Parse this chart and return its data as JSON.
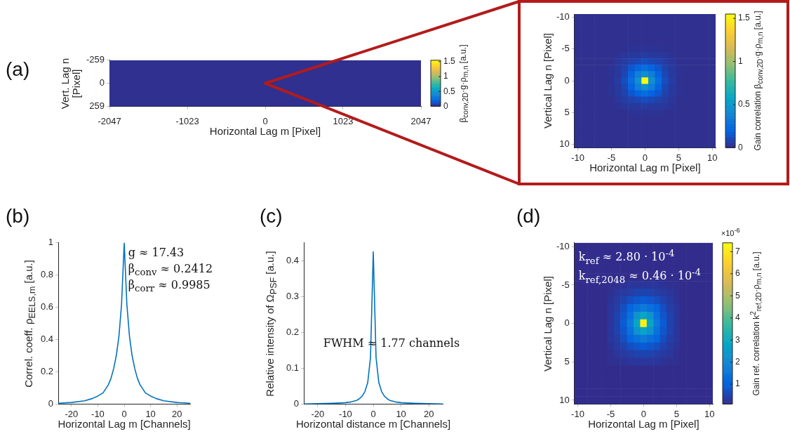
{
  "chart_data": [
    {
      "type": "heatmap",
      "title": "(a)",
      "xlabel": "Horizontal Lag m [Pixel]",
      "ylabel": "Vert. Lag n [Pixel]",
      "clabel": "β$_{conv,2D}$·g·ρ$_{m,n}$ [a.u.]",
      "xlim": [
        -2047,
        2047
      ],
      "xticks": [
        -2047,
        -1023,
        0,
        1023,
        2047
      ],
      "ylim": [
        259,
        -259
      ],
      "yticks": [
        -259,
        0,
        259
      ],
      "cells": [
        [
          0.02
        ]
      ],
      "clim": [
        0,
        1.55
      ],
      "cticks": [
        0,
        0.5,
        1,
        1.5
      ]
    },
    {
      "type": "heatmap",
      "xlabel": "Horizontal Lag m [Pixel]",
      "ylabel": "Vertical Lag n [Pixel]",
      "clabel": "Gain correlation β$_{conv,2D}$·g·ρ$_{m,n}$ [a.u.]",
      "xlim": [
        -10.5,
        10.5
      ],
      "xticks": [
        -10,
        -5,
        0,
        5,
        10
      ],
      "ylim": [
        10.5,
        -10.5
      ],
      "yticks": [
        -10,
        -5,
        0,
        5,
        10
      ],
      "clim": [
        0,
        1.55
      ],
      "cticks": [
        0,
        0.5,
        1,
        1.5
      ],
      "cells": [
        [
          0.02,
          0.02,
          0.02,
          0.02,
          0.02,
          0.02,
          0.02,
          0.02,
          0.02,
          0.02,
          0.02,
          0.02,
          0.02,
          0.02,
          0.02,
          0.02,
          0.02,
          0.02,
          0.02,
          0.02,
          0.02
        ],
        [
          0.02,
          0.02,
          0.02,
          0.02,
          0.02,
          0.02,
          0.02,
          0.02,
          0.02,
          0.02,
          0.02,
          0.02,
          0.02,
          0.02,
          0.02,
          0.02,
          0.02,
          0.02,
          0.02,
          0.02,
          0.02
        ],
        [
          0.02,
          0.02,
          0.02,
          0.02,
          0.02,
          0.02,
          0.02,
          0.02,
          0.02,
          0.02,
          0.02,
          0.02,
          0.02,
          0.02,
          0.02,
          0.02,
          0.02,
          0.02,
          0.02,
          0.02,
          0.02
        ],
        [
          0.02,
          0.02,
          0.02,
          0.02,
          0.02,
          0.02,
          0.02,
          0.02,
          0.02,
          0.02,
          0.02,
          0.02,
          0.02,
          0.02,
          0.02,
          0.02,
          0.02,
          0.02,
          0.02,
          0.02,
          0.02
        ],
        [
          0.02,
          0.02,
          0.02,
          0.02,
          0.02,
          0.02,
          0.02,
          0.02,
          0.02,
          0.02,
          0.02,
          0.02,
          0.02,
          0.02,
          0.02,
          0.02,
          0.02,
          0.02,
          0.02,
          0.02,
          0.02
        ],
        [
          0.02,
          0.02,
          0.02,
          0.02,
          0.02,
          0.02,
          0.02,
          0.02,
          0.03,
          0.03,
          0.03,
          0.03,
          0.03,
          0.02,
          0.02,
          0.02,
          0.02,
          0.02,
          0.02,
          0.02,
          0.02
        ],
        [
          0.02,
          0.02,
          0.02,
          0.02,
          0.02,
          0.02,
          0.03,
          0.04,
          0.05,
          0.05,
          0.06,
          0.05,
          0.05,
          0.04,
          0.03,
          0.02,
          0.02,
          0.02,
          0.02,
          0.02,
          0.02
        ],
        [
          0.02,
          0.02,
          0.02,
          0.02,
          0.02,
          0.02,
          0.04,
          0.06,
          0.08,
          0.1,
          0.12,
          0.1,
          0.08,
          0.06,
          0.04,
          0.02,
          0.02,
          0.02,
          0.02,
          0.02,
          0.02
        ],
        [
          0.02,
          0.02,
          0.02,
          0.02,
          0.02,
          0.03,
          0.05,
          0.08,
          0.15,
          0.2,
          0.25,
          0.2,
          0.15,
          0.08,
          0.05,
          0.03,
          0.02,
          0.02,
          0.02,
          0.02,
          0.02
        ],
        [
          0.02,
          0.02,
          0.02,
          0.02,
          0.02,
          0.03,
          0.05,
          0.1,
          0.2,
          0.35,
          0.45,
          0.35,
          0.2,
          0.1,
          0.05,
          0.03,
          0.02,
          0.02,
          0.02,
          0.02,
          0.02
        ],
        [
          0.02,
          0.02,
          0.02,
          0.02,
          0.02,
          0.03,
          0.06,
          0.12,
          0.25,
          0.45,
          1.55,
          0.45,
          0.25,
          0.12,
          0.06,
          0.03,
          0.02,
          0.02,
          0.02,
          0.02,
          0.02
        ],
        [
          0.02,
          0.02,
          0.02,
          0.02,
          0.02,
          0.03,
          0.05,
          0.1,
          0.2,
          0.35,
          0.45,
          0.35,
          0.2,
          0.1,
          0.05,
          0.03,
          0.02,
          0.02,
          0.02,
          0.02,
          0.02
        ],
        [
          0.02,
          0.02,
          0.02,
          0.02,
          0.02,
          0.03,
          0.05,
          0.08,
          0.15,
          0.2,
          0.25,
          0.2,
          0.15,
          0.08,
          0.05,
          0.03,
          0.02,
          0.02,
          0.02,
          0.02,
          0.02
        ],
        [
          0.02,
          0.02,
          0.02,
          0.02,
          0.02,
          0.02,
          0.04,
          0.06,
          0.08,
          0.1,
          0.12,
          0.1,
          0.08,
          0.06,
          0.04,
          0.02,
          0.02,
          0.02,
          0.02,
          0.02,
          0.02
        ],
        [
          0.02,
          0.02,
          0.02,
          0.02,
          0.02,
          0.02,
          0.03,
          0.04,
          0.05,
          0.05,
          0.06,
          0.05,
          0.05,
          0.04,
          0.03,
          0.02,
          0.02,
          0.02,
          0.02,
          0.02,
          0.02
        ],
        [
          0.02,
          0.02,
          0.02,
          0.02,
          0.02,
          0.02,
          0.02,
          0.02,
          0.03,
          0.03,
          0.03,
          0.03,
          0.03,
          0.02,
          0.02,
          0.02,
          0.02,
          0.02,
          0.02,
          0.02,
          0.02
        ],
        [
          0.02,
          0.02,
          0.02,
          0.02,
          0.02,
          0.02,
          0.02,
          0.02,
          0.02,
          0.02,
          0.02,
          0.02,
          0.02,
          0.02,
          0.02,
          0.02,
          0.02,
          0.02,
          0.02,
          0.02,
          0.02
        ],
        [
          0.02,
          0.02,
          0.02,
          0.02,
          0.02,
          0.02,
          0.02,
          0.02,
          0.02,
          0.02,
          0.02,
          0.02,
          0.02,
          0.02,
          0.02,
          0.02,
          0.02,
          0.02,
          0.02,
          0.02,
          0.02
        ],
        [
          0.02,
          0.02,
          0.02,
          0.02,
          0.02,
          0.02,
          0.02,
          0.02,
          0.02,
          0.02,
          0.02,
          0.02,
          0.02,
          0.02,
          0.02,
          0.02,
          0.02,
          0.02,
          0.02,
          0.02,
          0.02
        ],
        [
          0.02,
          0.02,
          0.02,
          0.02,
          0.02,
          0.02,
          0.02,
          0.02,
          0.02,
          0.02,
          0.02,
          0.02,
          0.02,
          0.02,
          0.02,
          0.02,
          0.02,
          0.02,
          0.02,
          0.02,
          0.02
        ],
        [
          0.02,
          0.02,
          0.02,
          0.02,
          0.02,
          0.02,
          0.02,
          0.02,
          0.02,
          0.02,
          0.02,
          0.02,
          0.02,
          0.02,
          0.02,
          0.02,
          0.02,
          0.02,
          0.02,
          0.02,
          0.02
        ]
      ]
    },
    {
      "type": "line",
      "title": "(b)",
      "xlabel": "Horizontal Lag m [Channels]",
      "ylabel": "Correl. coeff. ρ$_{EELS,m}$ [a.u.]",
      "annotations": [
        "g ≈ 17.43",
        "β$_{conv}$ ≈ 0.2412",
        "β$_{corr}$ ≈ 0.9985"
      ],
      "xlim": [
        -25,
        25
      ],
      "xticks": [
        -20,
        -10,
        0,
        10,
        20
      ],
      "ylim": [
        0,
        1
      ],
      "yticks": [
        0,
        0.2,
        0.4,
        0.6,
        0.8,
        1
      ],
      "x": [
        -25,
        -20,
        -15,
        -12,
        -10,
        -8,
        -6,
        -5,
        -4,
        -3,
        -2,
        -1,
        0,
        1,
        2,
        3,
        4,
        5,
        6,
        8,
        10,
        12,
        15,
        20,
        25
      ],
      "series": [
        {
          "color": "#0072bd",
          "values": [
            0.005,
            0.01,
            0.02,
            0.035,
            0.05,
            0.07,
            0.12,
            0.16,
            0.22,
            0.3,
            0.42,
            0.62,
            1,
            0.62,
            0.42,
            0.3,
            0.22,
            0.16,
            0.12,
            0.07,
            0.05,
            0.035,
            0.02,
            0.01,
            0.005
          ]
        }
      ]
    },
    {
      "type": "line",
      "title": "(c)",
      "xlabel": "Horizontal distance m [Channels]",
      "ylabel": "Relative intensity of Ω$_{PSF}$ [a.u.]",
      "annotations": [
        "FWHM ≈ 1.77 channels"
      ],
      "xlim": [
        -25,
        25
      ],
      "xticks": [
        -20,
        -10,
        0,
        10,
        20
      ],
      "ylim": [
        0,
        0.45
      ],
      "yticks": [
        0,
        0.1,
        0.2,
        0.3,
        0.4
      ],
      "x": [
        -25,
        -20,
        -15,
        -12,
        -10,
        -8,
        -6,
        -5,
        -4,
        -3,
        -2,
        -1,
        0,
        1,
        2,
        3,
        4,
        5,
        6,
        8,
        10,
        12,
        15,
        20,
        25
      ],
      "series": [
        {
          "color": "#0072bd",
          "values": [
            0,
            0.001,
            0.002,
            0.003,
            0.004,
            0.006,
            0.01,
            0.015,
            0.022,
            0.035,
            0.06,
            0.13,
            0.425,
            0.13,
            0.06,
            0.035,
            0.022,
            0.015,
            0.01,
            0.006,
            0.004,
            0.003,
            0.002,
            0.001,
            0
          ]
        }
      ]
    },
    {
      "type": "heatmap",
      "title": "(d)",
      "xlabel": "Horizontal Lag m [Pixel]",
      "ylabel": "Vertical Lag n [Pixel]",
      "clabel": "Gain ref. correlation k$^{2}$$_{ref,2D}$·ρ$_{m,n}$ [a.u.]",
      "annotations": [
        "k$_{ref}$ ≈ 2.80 · 10$^{-4}$",
        "k$_{ref,2048}$ ≈ 0.46 · 10$^{-4}$",
        "×10$^{-6}$"
      ],
      "xlim": [
        -10.5,
        10.5
      ],
      "xticks": [
        -10,
        -5,
        0,
        5,
        10
      ],
      "ylim": [
        10.5,
        -10.5
      ],
      "yticks": [
        -10,
        -5,
        0,
        5,
        10
      ],
      "clim": [
        0.1,
        7.4
      ],
      "cticks": [
        1,
        2,
        3,
        4,
        5,
        6,
        7
      ],
      "cells": [
        [
          0.15,
          0.15,
          0.15,
          0.15,
          0.15,
          0.15,
          0.15,
          0.15,
          0.15,
          0.15,
          0.15,
          0.15,
          0.15,
          0.15,
          0.15,
          0.15,
          0.15,
          0.15,
          0.15,
          0.15,
          0.15
        ],
        [
          0.15,
          0.15,
          0.15,
          0.15,
          0.15,
          0.15,
          0.15,
          0.15,
          0.15,
          0.15,
          0.15,
          0.15,
          0.15,
          0.15,
          0.15,
          0.15,
          0.15,
          0.15,
          0.15,
          0.15,
          0.15
        ],
        [
          0.15,
          0.15,
          0.15,
          0.15,
          0.15,
          0.15,
          0.15,
          0.15,
          0.15,
          0.15,
          0.15,
          0.15,
          0.15,
          0.15,
          0.15,
          0.15,
          0.15,
          0.15,
          0.15,
          0.15,
          0.15
        ],
        [
          0.15,
          0.15,
          0.15,
          0.15,
          0.15,
          0.15,
          0.15,
          0.15,
          0.15,
          0.15,
          0.15,
          0.15,
          0.15,
          0.15,
          0.15,
          0.15,
          0.15,
          0.15,
          0.15,
          0.15,
          0.15
        ],
        [
          0.15,
          0.15,
          0.15,
          0.15,
          0.15,
          0.15,
          0.15,
          0.15,
          0.15,
          0.15,
          0.15,
          0.15,
          0.15,
          0.15,
          0.15,
          0.15,
          0.15,
          0.15,
          0.15,
          0.15,
          0.15
        ],
        [
          0.15,
          0.15,
          0.15,
          0.15,
          0.15,
          0.2,
          0.2,
          0.25,
          0.3,
          0.3,
          0.3,
          0.3,
          0.3,
          0.25,
          0.2,
          0.2,
          0.15,
          0.15,
          0.15,
          0.15,
          0.15
        ],
        [
          0.15,
          0.15,
          0.15,
          0.15,
          0.15,
          0.2,
          0.3,
          0.35,
          0.4,
          0.5,
          0.5,
          0.5,
          0.4,
          0.35,
          0.3,
          0.2,
          0.15,
          0.15,
          0.15,
          0.15,
          0.15
        ],
        [
          0.15,
          0.15,
          0.15,
          0.15,
          0.15,
          0.25,
          0.35,
          0.5,
          0.7,
          0.8,
          0.9,
          0.8,
          0.7,
          0.5,
          0.35,
          0.25,
          0.15,
          0.15,
          0.15,
          0.15,
          0.15
        ],
        [
          0.15,
          0.15,
          0.15,
          0.15,
          0.15,
          0.3,
          0.4,
          0.7,
          1.1,
          1.4,
          1.6,
          1.4,
          1.1,
          0.7,
          0.4,
          0.3,
          0.15,
          0.15,
          0.15,
          0.15,
          0.15
        ],
        [
          0.15,
          0.15,
          0.15,
          0.15,
          0.15,
          0.3,
          0.5,
          0.8,
          1.4,
          2.3,
          2.8,
          2.3,
          1.4,
          0.8,
          0.5,
          0.3,
          0.15,
          0.15,
          0.15,
          0.15,
          0.15
        ],
        [
          0.15,
          0.15,
          0.15,
          0.15,
          0.15,
          0.3,
          0.5,
          0.9,
          1.6,
          2.8,
          7.2,
          2.8,
          1.6,
          0.9,
          0.5,
          0.3,
          0.15,
          0.15,
          0.15,
          0.15,
          0.15
        ],
        [
          0.15,
          0.15,
          0.15,
          0.15,
          0.15,
          0.3,
          0.5,
          0.8,
          1.4,
          2.3,
          2.8,
          2.3,
          1.4,
          0.8,
          0.5,
          0.3,
          0.15,
          0.15,
          0.15,
          0.15,
          0.15
        ],
        [
          0.15,
          0.15,
          0.15,
          0.15,
          0.15,
          0.3,
          0.4,
          0.7,
          1.1,
          1.4,
          1.6,
          1.4,
          1.1,
          0.7,
          0.4,
          0.3,
          0.15,
          0.15,
          0.15,
          0.15,
          0.15
        ],
        [
          0.15,
          0.15,
          0.15,
          0.15,
          0.15,
          0.25,
          0.35,
          0.5,
          0.7,
          0.8,
          0.9,
          0.8,
          0.7,
          0.5,
          0.35,
          0.25,
          0.15,
          0.15,
          0.15,
          0.15,
          0.15
        ],
        [
          0.15,
          0.15,
          0.15,
          0.15,
          0.15,
          0.2,
          0.3,
          0.35,
          0.4,
          0.5,
          0.5,
          0.5,
          0.4,
          0.35,
          0.3,
          0.2,
          0.15,
          0.15,
          0.15,
          0.15,
          0.15
        ],
        [
          0.15,
          0.15,
          0.15,
          0.15,
          0.15,
          0.2,
          0.2,
          0.25,
          0.3,
          0.3,
          0.3,
          0.3,
          0.3,
          0.25,
          0.2,
          0.2,
          0.15,
          0.15,
          0.15,
          0.15,
          0.15
        ],
        [
          0.15,
          0.15,
          0.15,
          0.15,
          0.15,
          0.15,
          0.15,
          0.15,
          0.15,
          0.15,
          0.15,
          0.15,
          0.15,
          0.15,
          0.15,
          0.15,
          0.15,
          0.15,
          0.15,
          0.15,
          0.15
        ],
        [
          0.15,
          0.15,
          0.15,
          0.15,
          0.15,
          0.15,
          0.15,
          0.15,
          0.15,
          0.15,
          0.15,
          0.15,
          0.15,
          0.15,
          0.15,
          0.15,
          0.15,
          0.15,
          0.15,
          0.15,
          0.15
        ],
        [
          0.15,
          0.15,
          0.15,
          0.15,
          0.15,
          0.15,
          0.15,
          0.15,
          0.15,
          0.15,
          0.15,
          0.15,
          0.15,
          0.15,
          0.15,
          0.15,
          0.15,
          0.15,
          0.15,
          0.15,
          0.15
        ],
        [
          0.15,
          0.15,
          0.15,
          0.15,
          0.15,
          0.15,
          0.15,
          0.15,
          0.15,
          0.15,
          0.15,
          0.15,
          0.15,
          0.15,
          0.15,
          0.15,
          0.15,
          0.15,
          0.15,
          0.15,
          0.15
        ],
        [
          0.15,
          0.15,
          0.15,
          0.15,
          0.15,
          0.15,
          0.15,
          0.15,
          0.15,
          0.15,
          0.15,
          0.15,
          0.15,
          0.15,
          0.15,
          0.15,
          0.15,
          0.15,
          0.15,
          0.15,
          0.15
        ]
      ]
    }
  ]
}
